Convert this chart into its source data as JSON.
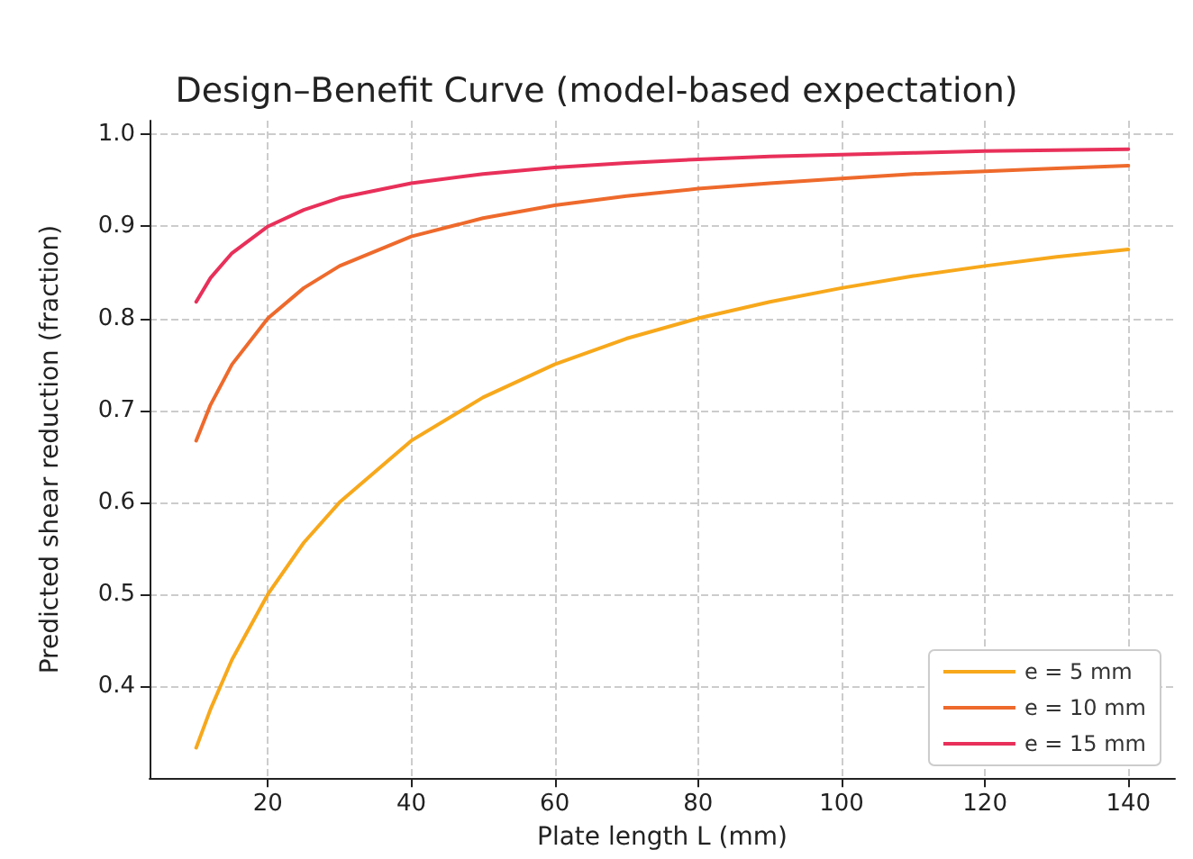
{
  "chart_data": {
    "type": "line",
    "title": "Design–Benefit Curve (model-based expectation)",
    "xlabel": "Plate length L (mm)",
    "ylabel": "Predicted shear reduction (fraction)",
    "x": [
      10,
      12,
      15,
      20,
      25,
      30,
      40,
      50,
      60,
      70,
      80,
      90,
      100,
      110,
      120,
      130,
      140
    ],
    "series": [
      {
        "name": "e = 5 mm",
        "color": "#f7a81b",
        "values": [
          0.333,
          0.375,
          0.429,
          0.5,
          0.556,
          0.6,
          0.667,
          0.714,
          0.75,
          0.778,
          0.8,
          0.818,
          0.833,
          0.846,
          0.857,
          0.867,
          0.875
        ]
      },
      {
        "name": "e = 10 mm",
        "color": "#ee6a2c",
        "values": [
          0.667,
          0.706,
          0.75,
          0.8,
          0.833,
          0.857,
          0.889,
          0.909,
          0.923,
          0.933,
          0.941,
          0.947,
          0.952,
          0.957,
          0.96,
          0.963,
          0.966
        ]
      },
      {
        "name": "e = 15 mm",
        "color": "#e8305a",
        "values": [
          0.818,
          0.844,
          0.871,
          0.9,
          0.918,
          0.931,
          0.947,
          0.957,
          0.964,
          0.969,
          0.973,
          0.976,
          0.978,
          0.98,
          0.982,
          0.983,
          0.984
        ]
      }
    ],
    "xlim": [
      3.5,
      146.5
    ],
    "xticks": [
      20,
      40,
      60,
      80,
      100,
      120,
      140
    ],
    "ylim": [
      0.3,
      1.015
    ],
    "yticks": [
      0.4,
      0.5,
      0.6,
      0.7,
      0.8,
      0.9,
      {
        "value": 1,
        "label": "1.0"
      }
    ],
    "grid": true,
    "legend": "bottom right",
    "marker": "none",
    "line_style": "solid"
  }
}
